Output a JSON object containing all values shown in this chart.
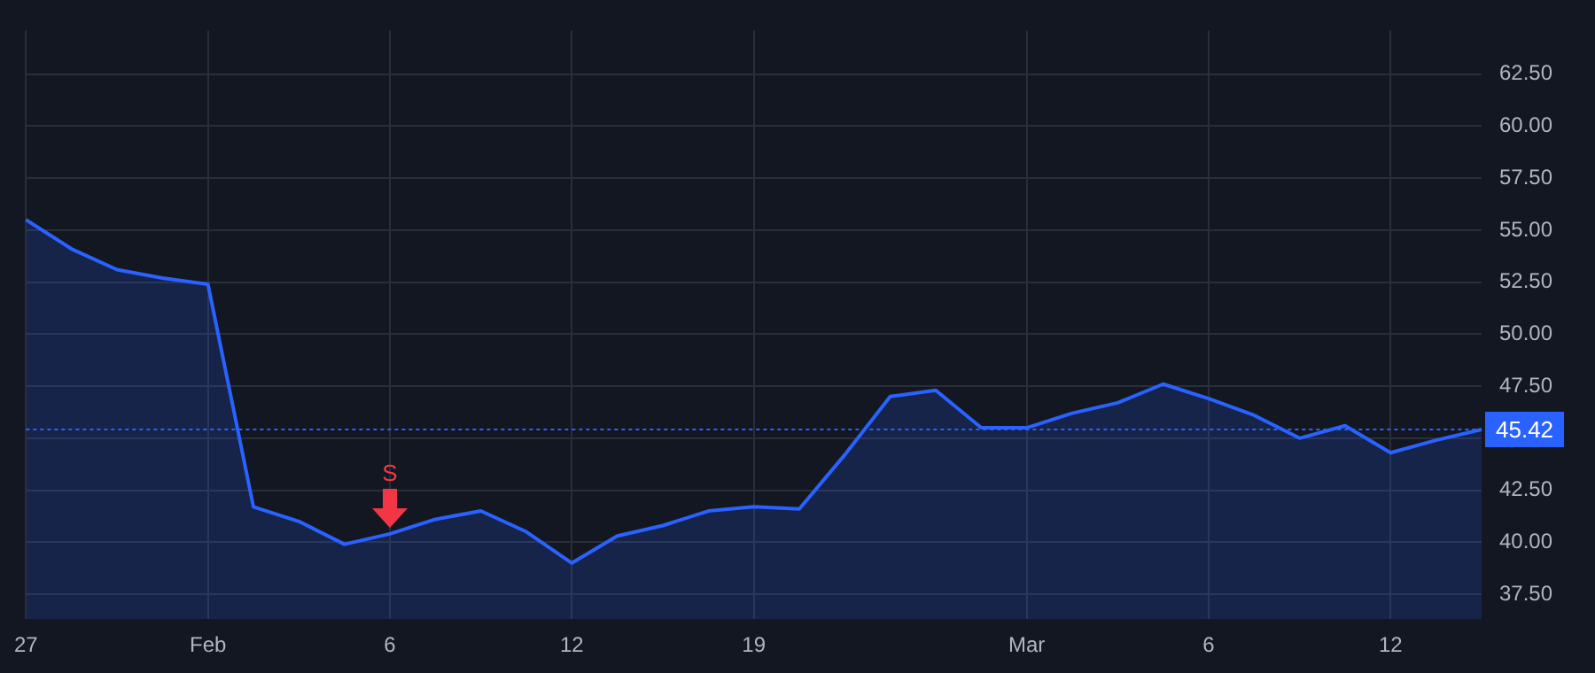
{
  "chart_data": {
    "type": "area",
    "categories": [
      "27",
      null,
      null,
      null,
      "Feb",
      null,
      null,
      null,
      "6",
      null,
      null,
      null,
      "12",
      null,
      null,
      null,
      "19",
      null,
      null,
      null,
      null,
      null,
      "Mar",
      null,
      null,
      null,
      "6",
      null,
      null,
      null,
      "12",
      null,
      null
    ],
    "series": [
      {
        "color": "#2962ff",
        "values": [
          55.5,
          54.1,
          53.1,
          52.7,
          52.4,
          41.7,
          41.0,
          39.9,
          40.4,
          41.1,
          41.5,
          40.5,
          39.0,
          40.3,
          40.8,
          41.5,
          41.7,
          41.6,
          44.2,
          47.0,
          47.3,
          45.5,
          45.5,
          46.2,
          46.7,
          47.6,
          46.9,
          46.1,
          45.0,
          45.6,
          44.3,
          44.9,
          45.42
        ]
      }
    ],
    "ylim": [
      36.3,
      64.6
    ],
    "yticks": [
      {
        "value": 37.5,
        "label": "37.50"
      },
      {
        "value": 40,
        "label": "40.00"
      },
      {
        "value": 42.5,
        "label": "42.50"
      },
      {
        "value": 45,
        "label": null
      },
      {
        "value": 47.5,
        "label": "47.50"
      },
      {
        "value": 50,
        "label": "50.00"
      },
      {
        "value": 52.5,
        "label": "52.50"
      },
      {
        "value": 55,
        "label": "55.00"
      },
      {
        "value": 57.5,
        "label": "57.50"
      },
      {
        "value": 60,
        "label": "60.00"
      },
      {
        "value": 62.5,
        "label": "62.50"
      }
    ],
    "ref_lines": [
      {
        "axis": "y",
        "value": 45.42,
        "label": "45.42",
        "color": "#2962ff",
        "line_style": "dotted"
      }
    ],
    "annotations": [
      {
        "text": "S",
        "x": "6",
        "y": 40.4
      }
    ],
    "grid": true,
    "legend": false
  }
}
